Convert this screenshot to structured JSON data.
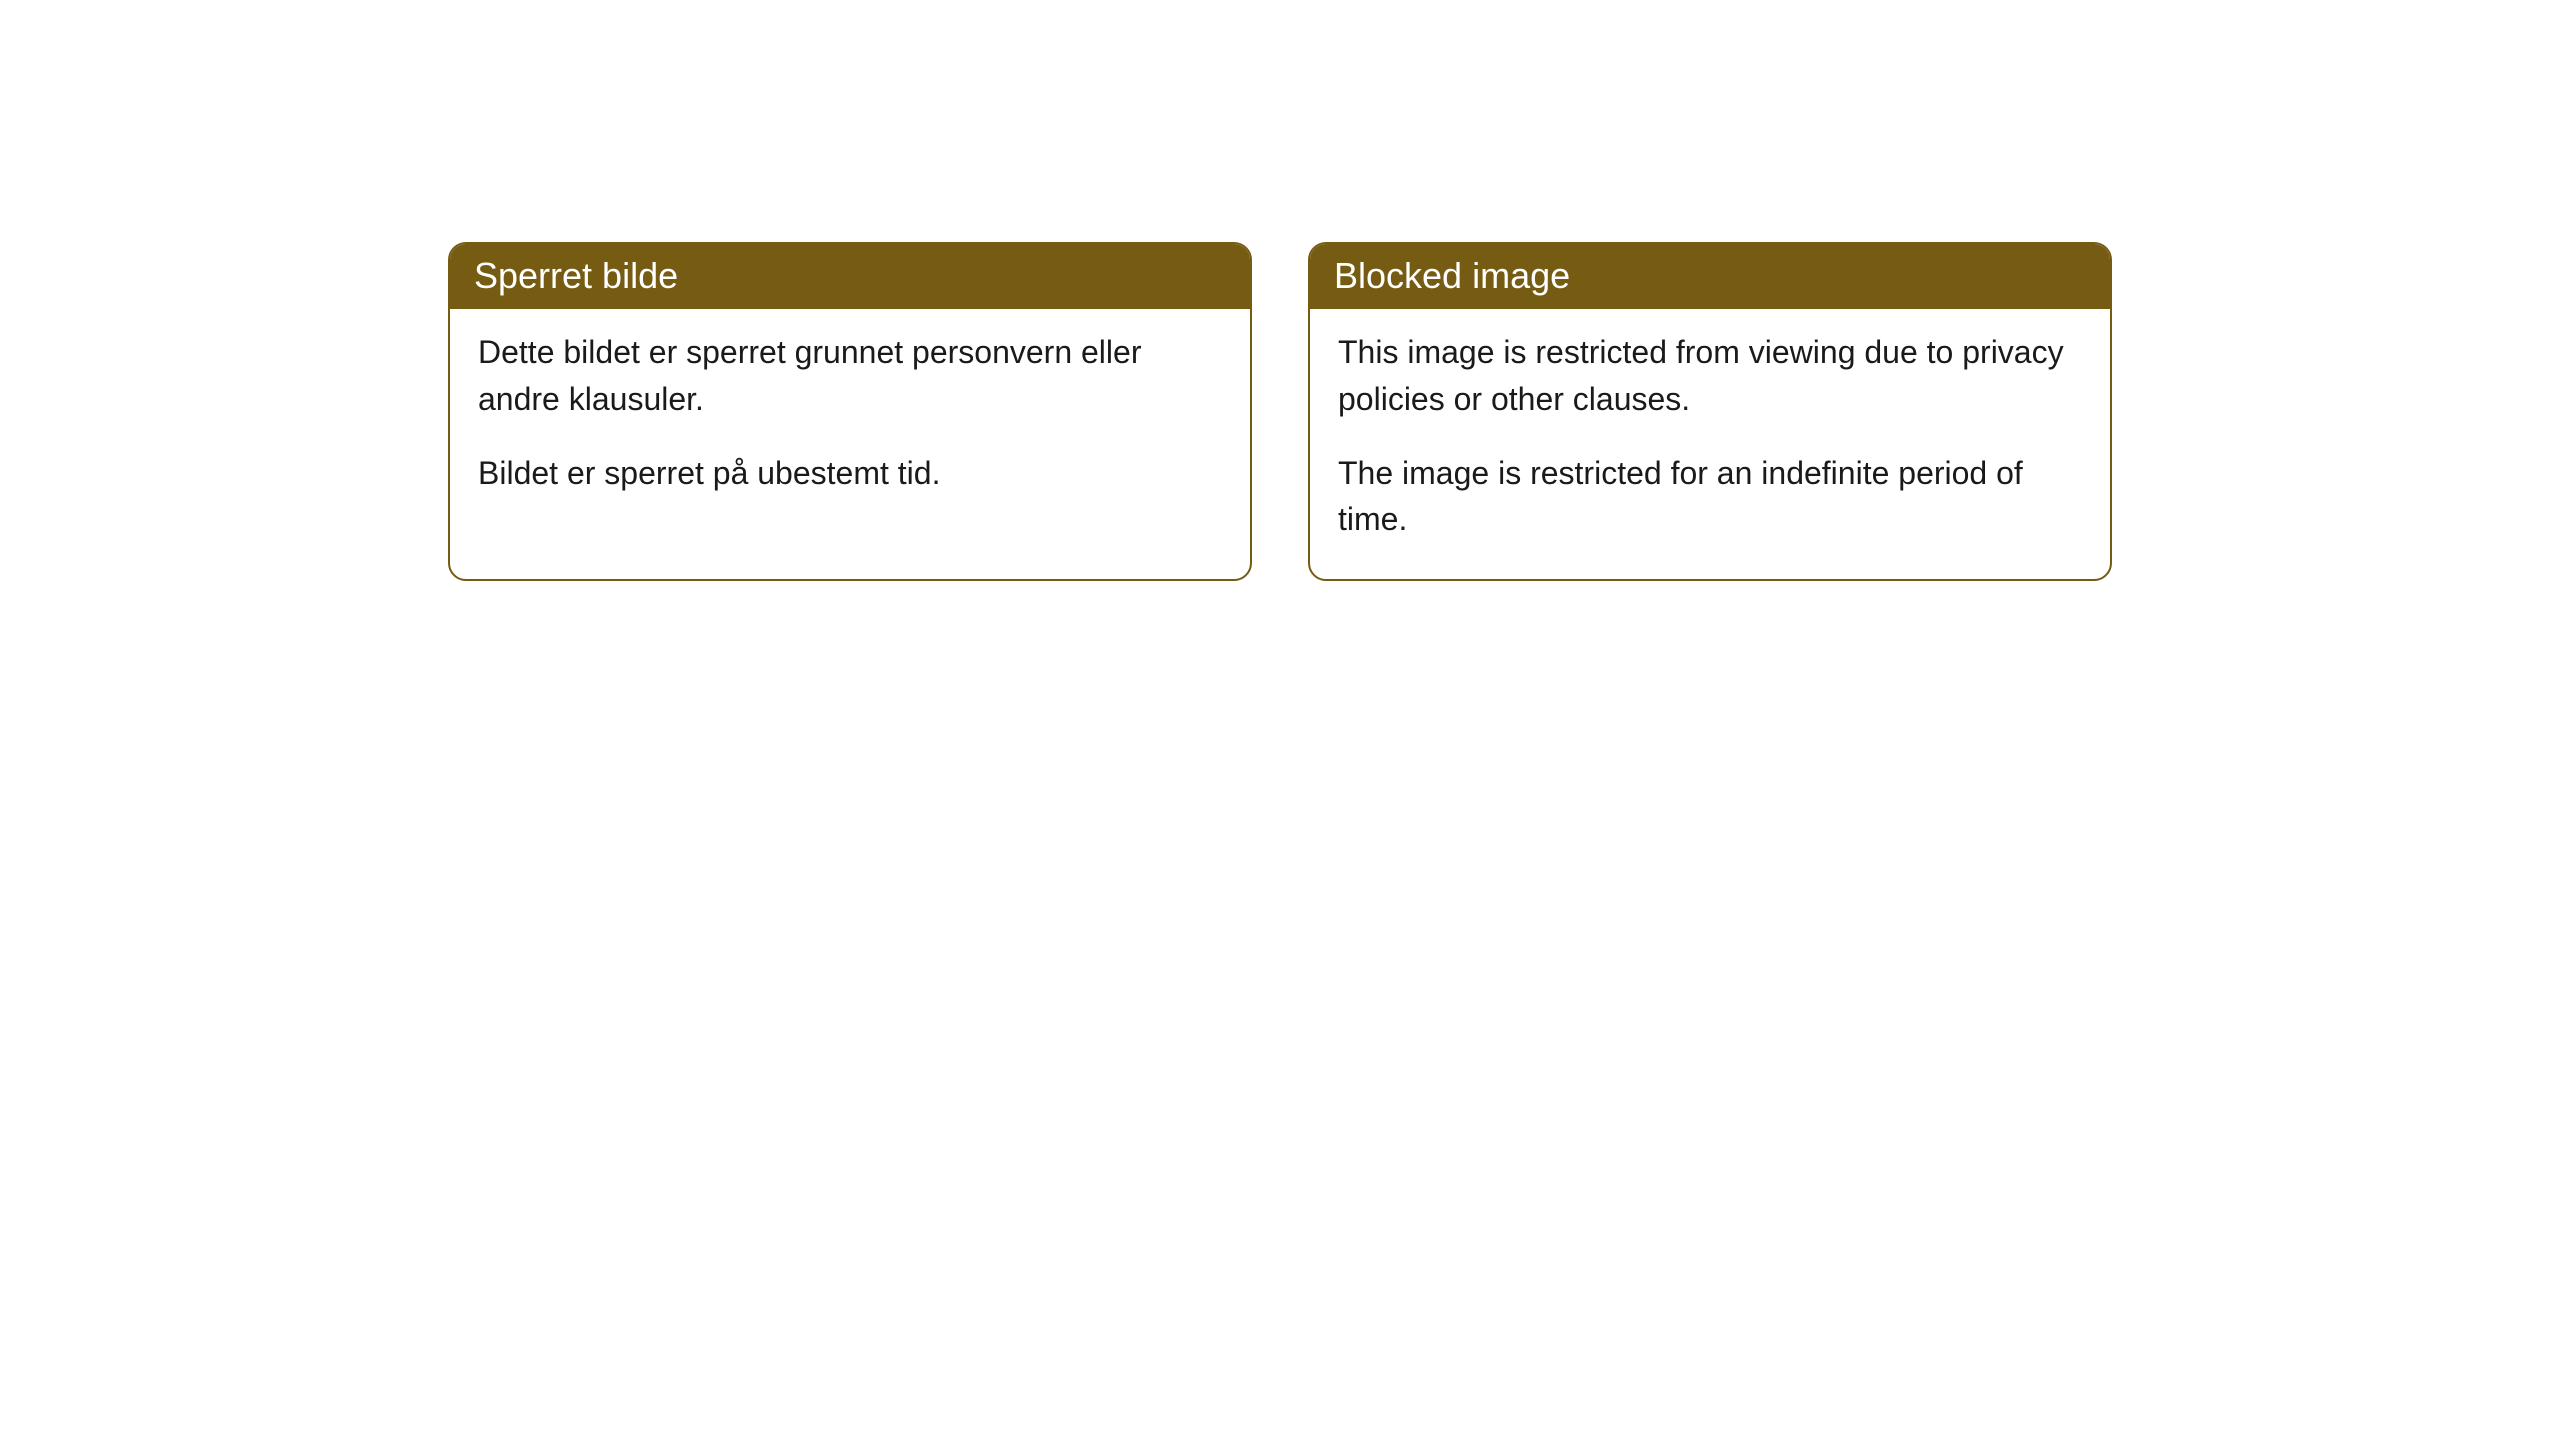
{
  "colors": {
    "header_bg": "#765b13",
    "header_text": "#ffffff",
    "border": "#765b13",
    "body_text": "#1a1a1a",
    "page_bg": "#ffffff"
  },
  "cards": [
    {
      "title": "Sperret bilde",
      "paragraphs": [
        "Dette bildet er sperret grunnet personvern eller andre klausuler.",
        "Bildet er sperret på ubestemt tid."
      ]
    },
    {
      "title": "Blocked image",
      "paragraphs": [
        "This image is restricted from viewing due to privacy policies or other clauses.",
        "The image is restricted for an indefinite period of time."
      ]
    }
  ]
}
